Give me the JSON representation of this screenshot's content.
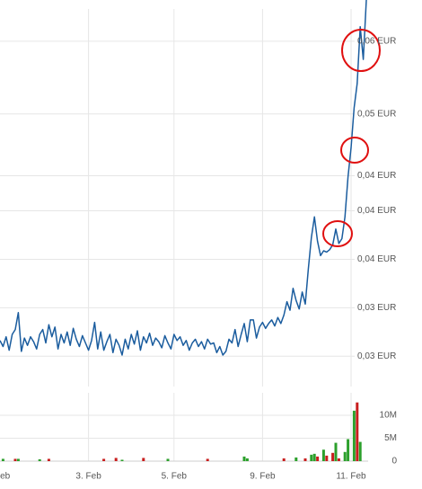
{
  "chart_data": [
    {
      "type": "line",
      "color": "#1a5c9e",
      "grid": true,
      "xlim": [
        0,
        120
      ],
      "ylim": [
        0.0275,
        0.0594
      ],
      "yticks": [
        {
          "value": 0.03,
          "label": "0,03 EUR"
        },
        {
          "value": 0.034,
          "label": "0,03 EUR"
        },
        {
          "value": 0.038,
          "label": "0,04 EUR"
        },
        {
          "value": 0.042,
          "label": "0,04 EUR"
        },
        {
          "value": 0.0449,
          "label": "0,04 EUR"
        },
        {
          "value": 0.05,
          "label": "0,05 EUR"
        },
        {
          "value": 0.056,
          "label": "0,06 EUR"
        }
      ],
      "xticks": [
        {
          "value": 0,
          "label": "Feb"
        },
        {
          "value": 29,
          "label": "3. Feb"
        },
        {
          "value": 57,
          "label": "5. Feb"
        },
        {
          "value": 86,
          "label": "9. Feb"
        },
        {
          "value": 115,
          "label": "11. Feb"
        }
      ],
      "values": [
        0.0313,
        0.0308,
        0.0316,
        0.0305,
        0.0318,
        0.0322,
        0.0336,
        0.0304,
        0.0315,
        0.0309,
        0.0316,
        0.0312,
        0.0306,
        0.0318,
        0.0322,
        0.0311,
        0.0326,
        0.0316,
        0.0324,
        0.0306,
        0.0318,
        0.0311,
        0.032,
        0.0309,
        0.0323,
        0.0314,
        0.0308,
        0.0317,
        0.0311,
        0.0305,
        0.0313,
        0.0328,
        0.0306,
        0.032,
        0.0305,
        0.0312,
        0.0318,
        0.0303,
        0.0314,
        0.0309,
        0.0301,
        0.0314,
        0.0306,
        0.0318,
        0.031,
        0.0321,
        0.0305,
        0.0316,
        0.0311,
        0.0319,
        0.0309,
        0.0315,
        0.0312,
        0.0307,
        0.0317,
        0.0311,
        0.0306,
        0.0318,
        0.0313,
        0.0316,
        0.0309,
        0.0313,
        0.0305,
        0.0311,
        0.0314,
        0.0308,
        0.0312,
        0.0306,
        0.0314,
        0.031,
        0.0311,
        0.0303,
        0.0308,
        0.0301,
        0.0304,
        0.0314,
        0.0311,
        0.0322,
        0.0308,
        0.0318,
        0.0327,
        0.0312,
        0.033,
        0.033,
        0.0315,
        0.0324,
        0.0328,
        0.0323,
        0.0327,
        0.033,
        0.0325,
        0.0332,
        0.0327,
        0.0334,
        0.0345,
        0.0338,
        0.0356,
        0.0346,
        0.0339,
        0.0353,
        0.0343,
        0.0372,
        0.0398,
        0.0415,
        0.0395,
        0.0383,
        0.0387,
        0.0386,
        0.0388,
        0.0392,
        0.0405,
        0.0393,
        0.0397,
        0.0415,
        0.0448,
        0.0472,
        0.0505,
        0.0525,
        0.0572,
        0.0545,
        0.0594
      ]
    },
    {
      "type": "bar",
      "xlim": [
        0,
        120
      ],
      "ylim": [
        0,
        14900000
      ],
      "yticks": [
        0,
        {
          "value": 5000000,
          "label": "5M"
        },
        {
          "value": 10000000,
          "label": "10M"
        }
      ],
      "x": [
        1,
        5,
        6,
        13,
        16,
        34,
        38,
        40,
        47,
        55,
        68,
        80,
        81,
        93,
        97,
        100,
        102,
        103,
        104,
        106,
        107,
        109,
        110,
        111,
        113,
        114,
        116,
        117,
        118
      ],
      "values": [
        500000,
        500000,
        500000,
        400000,
        500000,
        500000,
        700000,
        300000,
        700000,
        500000,
        500000,
        1000000,
        600000,
        600000,
        800000,
        600000,
        1400000,
        1600000,
        1000000,
        2500000,
        1200000,
        1800000,
        4000000,
        600000,
        2000000,
        4800000,
        11000000,
        12800000,
        4200000
      ],
      "colors": [
        "#2ca02c",
        "#c81e1e",
        "#2ca02c",
        "#2ca02c",
        "#c81e1e",
        "#c81e1e",
        "#c81e1e",
        "#2ca02c",
        "#c81e1e",
        "#2ca02c",
        "#c81e1e",
        "#2ca02c",
        "#2ca02c",
        "#c81e1e",
        "#2ca02c",
        "#c81e1e",
        "#2ca02c",
        "#2ca02c",
        "#c81e1e",
        "#2ca02c",
        "#c81e1e",
        "#c81e1e",
        "#2ca02c",
        "#c81e1e",
        "#2ca02c",
        "#2ca02c",
        "#2ca02c",
        "#c81e1e",
        "#2ca02c"
      ]
    }
  ]
}
